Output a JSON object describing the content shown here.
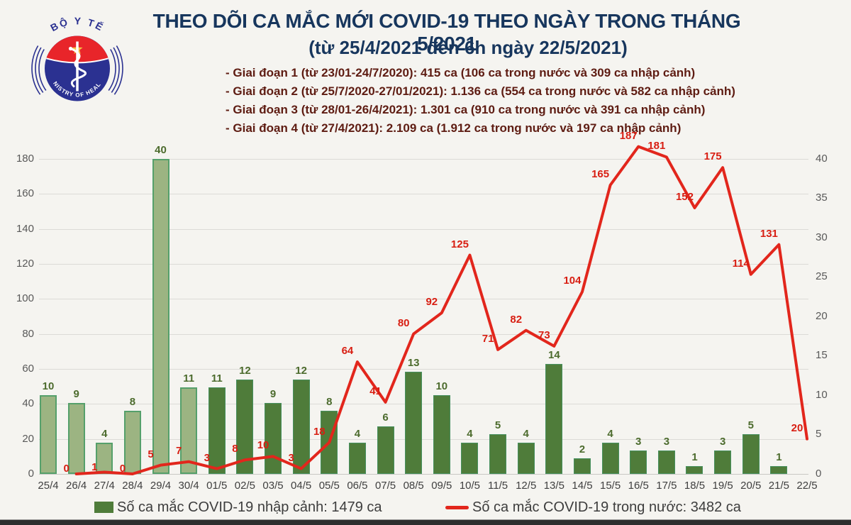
{
  "logo": {
    "top_text": "BỘ Y TẾ",
    "bottom_text": "MINISTRY OF HEALTH",
    "colors": {
      "blue": "#2b3191",
      "red": "#e8252a",
      "star": "#f6c344"
    }
  },
  "header": {
    "title": "THEO DÕI CA MẮC MỚI COVID-19 THEO NGÀY TRONG THÁNG 5/2021",
    "subtitle": "(từ 25/4/2021 đến 6h ngày 22/5/2021)"
  },
  "phases": [
    "- Giai đoạn 1 (từ 23/01-24/7/2020): 415 ca (106 ca trong nước và 309 ca nhập cảnh)",
    "- Giai đoạn 2 (từ 25/7/2020-27/01/2021): 1.136 ca (554 ca trong nước và 582 ca nhập cảnh)",
    "- Giai đoạn 3 (từ 28/01-26/4/2021): 1.301 ca (910 ca trong nước và 391 ca nhập cảnh)",
    "- Giai đoạn 4 (từ 27/4/2021): 2.109 ca (1.912 ca trong nước và 197 ca nhập cảnh)"
  ],
  "colors": {
    "title": "#17365d",
    "phase_text": "#5e1c12",
    "bar_light": "#9cb482",
    "bar_dark": "#4f7c3a",
    "line": "#e2261c",
    "bar_label": "#4c6b2d",
    "line_label": "#d81e12",
    "axis_label": "#595959",
    "grid": "#dbdad6",
    "background": "#f5f4f0"
  },
  "chart_data": {
    "type": "combo",
    "categories": [
      "25/4",
      "26/4",
      "27/4",
      "28/4",
      "29/4",
      "30/4",
      "01/5",
      "02/5",
      "03/5",
      "04/5",
      "05/5",
      "06/5",
      "07/5",
      "08/5",
      "09/5",
      "10/5",
      "11/5",
      "12/5",
      "13/5",
      "14/5",
      "15/5",
      "16/5",
      "17/5",
      "18/5",
      "19/5",
      "20/5",
      "21/5",
      "22/5"
    ],
    "series": [
      {
        "name": "Số ca mắc COVID-19 nhập cảnh",
        "type": "bar",
        "axis": "right",
        "light_first_n": 6,
        "values": [
          10,
          9,
          4,
          8,
          40,
          11,
          11,
          12,
          9,
          12,
          8,
          4,
          6,
          13,
          10,
          4,
          5,
          4,
          14,
          2,
          4,
          3,
          3,
          1,
          3,
          5,
          1,
          null
        ]
      },
      {
        "name": "Số ca mắc COVID-19 trong nước",
        "type": "line",
        "axis": "left",
        "values": [
          null,
          0,
          1,
          0,
          5,
          7,
          3,
          8,
          10,
          3,
          18,
          64,
          41,
          80,
          92,
          125,
          71,
          82,
          73,
          104,
          165,
          187,
          181,
          152,
          175,
          114,
          131,
          20
        ]
      }
    ],
    "left_axis": {
      "ticks": [
        0,
        20,
        40,
        60,
        80,
        100,
        120,
        140,
        160,
        180
      ],
      "max": 180
    },
    "right_axis": {
      "ticks": [
        0,
        5,
        10,
        15,
        20,
        25,
        30,
        35,
        40
      ],
      "max": 40
    },
    "grid": true,
    "legend_position": "bottom"
  },
  "legend": {
    "bars_label": "Số ca mắc COVID-19 nhập cảnh: 1479 ca",
    "line_label": "Số ca mắc COVID-19 trong nước: 3482 ca"
  }
}
